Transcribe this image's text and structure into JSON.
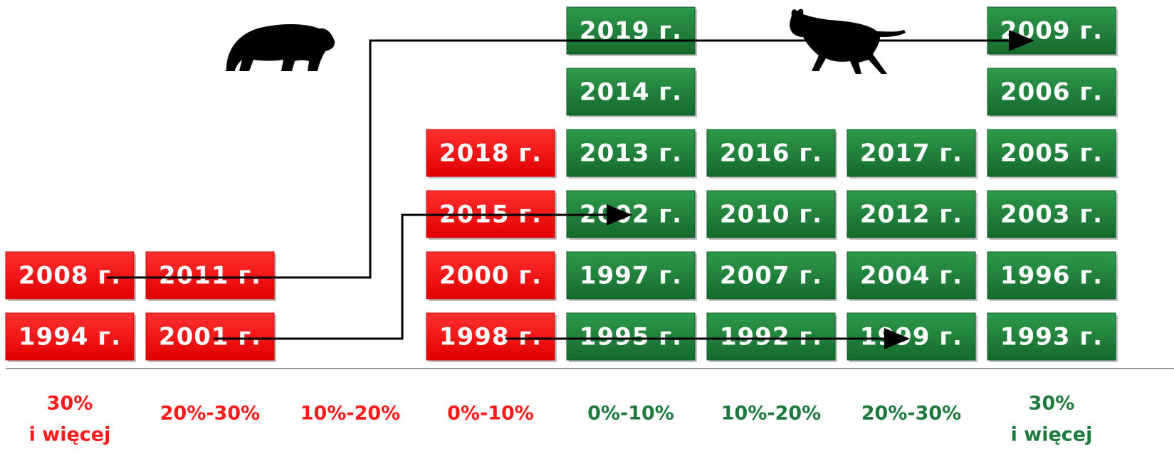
{
  "columns": [
    {
      "label": [
        "30%",
        "i więcej"
      ],
      "boxes": [
        "1994 г.",
        "2008 г."
      ]
    },
    {
      "label": [
        "20%-30%"
      ],
      "boxes": [
        "2001 г.",
        "2011 г."
      ]
    },
    {
      "label": [
        "10%-20%"
      ],
      "boxes": []
    },
    {
      "label": [
        "0%-10%"
      ],
      "boxes": [
        "1998 г.",
        "2000 г.",
        "2015 г.",
        "2018 г."
      ]
    },
    {
      "label": [
        "0%-10%"
      ],
      "boxes": [
        "1995 г.",
        "1997 г.",
        "2002 г.",
        "2013 г.",
        "2014 г.",
        "2019 г."
      ]
    },
    {
      "label": [
        "10%-20%"
      ],
      "boxes": [
        "1992 г.",
        "2007 г.",
        "2010 г.",
        "2016 г."
      ]
    },
    {
      "label": [
        "20%-30%"
      ],
      "boxes": [
        "1999 г.",
        "2004 г.",
        "2012 г.",
        "2017 г."
      ]
    },
    {
      "label": [
        "30%",
        "i więcej"
      ],
      "boxes": [
        "1993 г.",
        "1996 г.",
        "2003 г.",
        "2005 г.",
        "2006 г.",
        "2009 г."
      ]
    }
  ]
}
